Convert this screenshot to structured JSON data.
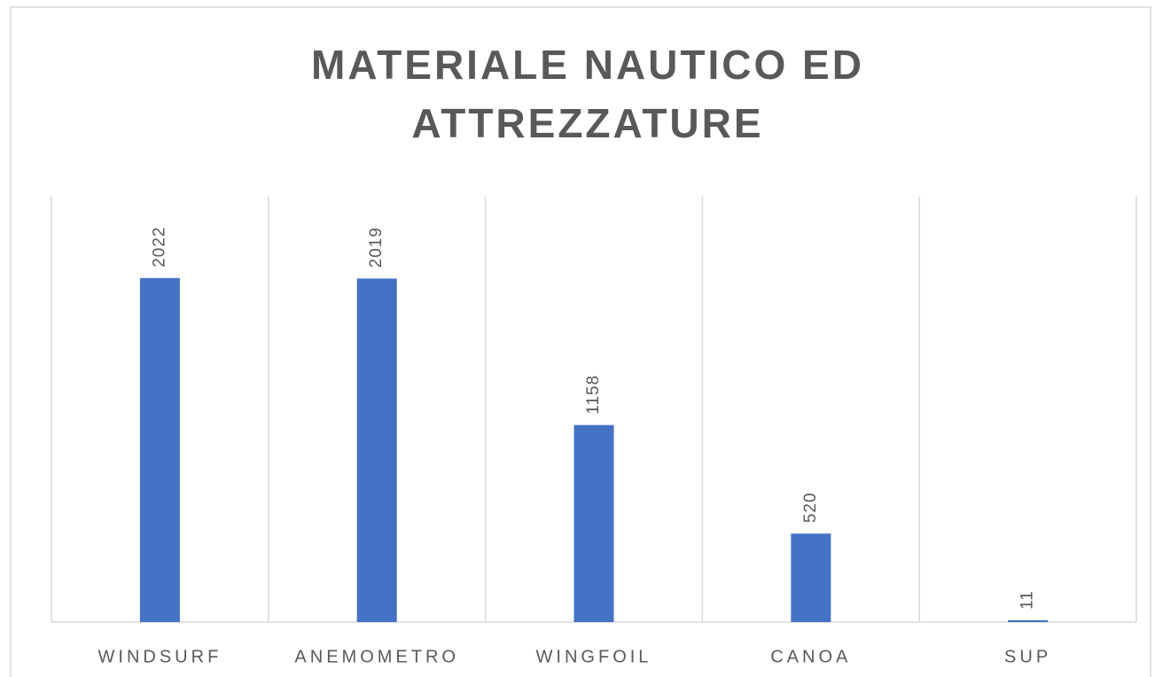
{
  "chart_data": {
    "type": "bar",
    "title": "MATERIALE NAUTICO ED ATTREZZATURE",
    "categories": [
      "WINDSURF",
      "ANEMOMETRO",
      "WINGFOIL",
      "CANOA",
      "SUP"
    ],
    "values": [
      2022,
      2019,
      1158,
      520,
      11
    ],
    "color": "#4472c4",
    "ylim": [
      0,
      2500
    ]
  }
}
